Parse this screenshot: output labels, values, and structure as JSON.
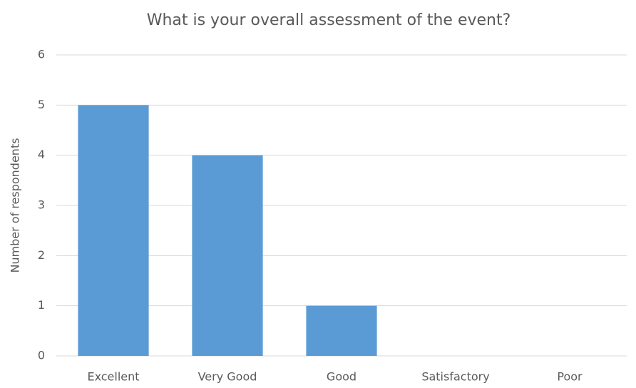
{
  "chart_data": {
    "type": "bar",
    "title": "What is your overall assessment of the event?",
    "y_label": "Number of respondents",
    "categories": [
      "Excellent",
      "Very Good",
      "Good",
      "Satisfactory",
      "Poor"
    ],
    "values": [
      5,
      4,
      1,
      0,
      0
    ],
    "color": "#5b9bd5",
    "ylim": [
      0,
      6
    ],
    "yticks": [
      0,
      1,
      2,
      3,
      4,
      5,
      6
    ],
    "grid": true
  }
}
